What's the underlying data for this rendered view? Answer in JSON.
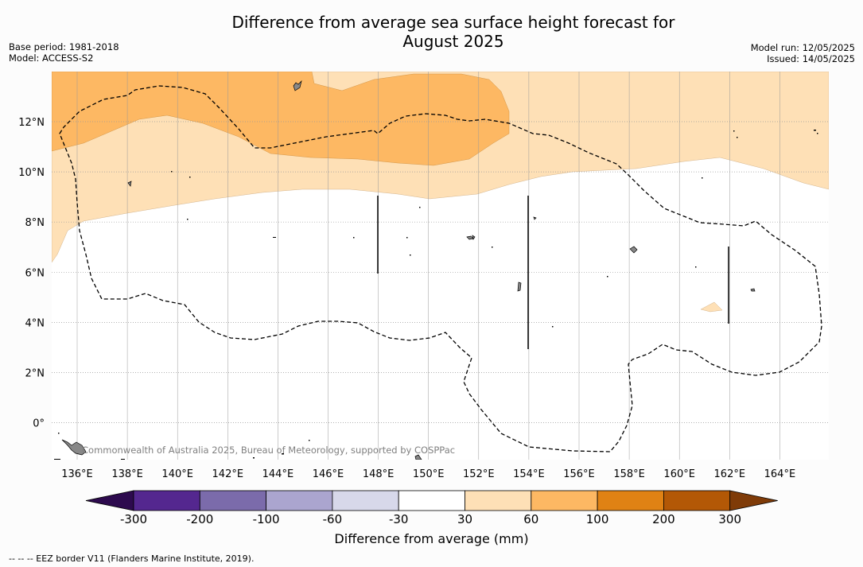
{
  "title_line1": "Difference from average sea surface height forecast for",
  "title_line2": "August 2025",
  "base_period": "Base period: 1981-2018",
  "model": "Model: ACCESS-S2",
  "model_run": "Model run: 12/05/2025",
  "issued": "Issued: 14/05/2025",
  "copyright": "Commonwealth of Australia 2025, Bureau of Meteorology, supported by COSPPac",
  "lon_ticks": [
    "136°E",
    "138°E",
    "140°E",
    "142°E",
    "144°E",
    "146°E",
    "148°E",
    "150°E",
    "152°E",
    "154°E",
    "156°E",
    "158°E",
    "160°E",
    "162°E",
    "164°E"
  ],
  "lat_ticks": [
    "12°N",
    "10°N",
    "8°N",
    "6°N",
    "4°N",
    "2°N",
    "0°"
  ],
  "colorbar": {
    "labels": [
      "-300",
      "-200",
      "-100",
      "-60",
      "-30",
      "30",
      "60",
      "100",
      "200",
      "300"
    ],
    "colors": [
      "#54278f",
      "#7b6bab",
      "#aba5cf",
      "#d7d8ea",
      "#ffffff",
      "#fee0b6",
      "#fdb863",
      "#e08214",
      "#b35806"
    ],
    "under_color": "#2d0a4e",
    "over_color": "#7f3b08",
    "label": "Difference from average (mm)"
  },
  "footer": "-- -- -- EEZ border V11 (Flanders Marine Institute, 2019).",
  "colors": {
    "light_orange": "#fee0b6",
    "mid_orange": "#fdb863",
    "land": "#888888"
  }
}
